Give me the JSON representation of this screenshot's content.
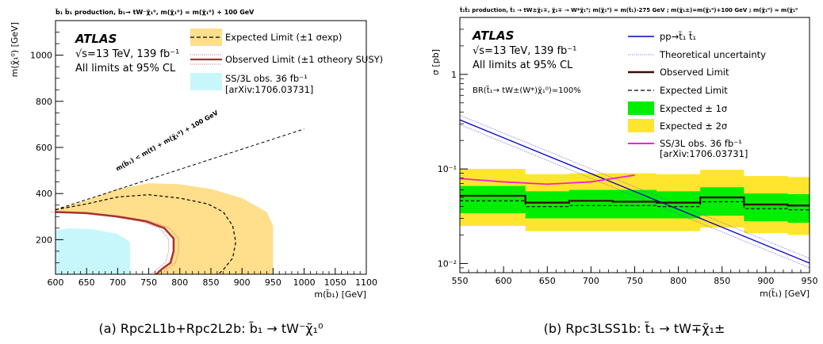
{
  "chart_data": [
    {
      "type": "line",
      "panel": "a",
      "title": "b̃₁ b̃₁ production, b̃₁→ tW⁻χ̃₁⁰, m(χ̃₁⁰) = m(χ̃₁⁰) + 100 GeV",
      "xlabel": "m(b̃₁) [GeV]",
      "ylabel": "m(χ̃₁⁰) [GeV]",
      "xlim": [
        600,
        1100
      ],
      "ylim": [
        50,
        1150
      ],
      "xticks": [
        "600",
        "650",
        "700",
        "750",
        "800",
        "850",
        "900",
        "950",
        "1000",
        "1050",
        "1100"
      ],
      "yticks": [
        "200",
        "400",
        "600",
        "800",
        "1000"
      ],
      "atlas_label": "ATLAS",
      "energy_label": "√s=13 TeV, 139 fb⁻¹",
      "cl_label": "All limits at 95% CL",
      "legend_position": "top-right",
      "legend": [
        {
          "label": "Expected Limit (±1 σexp)",
          "style": "dashed-yellow-band"
        },
        {
          "label": "Observed Limit (±1 σtheory SUSY)",
          "style": "solid-red-dotted"
        },
        {
          "label": "SS/3L obs. 36 fb⁻¹",
          "style": "cyan-fill"
        },
        {
          "label": "[arXiv:1706.03731]",
          "style": "text"
        }
      ],
      "diagonal_label": "m(b̃₁) < m(t) + m(χ̃₁⁰) + 100 GeV",
      "diagonal": {
        "x": [
          600,
          1000
        ],
        "y": [
          330,
          680
        ]
      },
      "expected": {
        "x": [
          600,
          650,
          700,
          750,
          800,
          845,
          870,
          885,
          890,
          885,
          870,
          862
        ],
        "y": [
          330,
          355,
          385,
          395,
          380,
          355,
          320,
          260,
          190,
          120,
          70,
          50
        ]
      },
      "expected_band": {
        "x": [
          600,
          650,
          700,
          750,
          800,
          850,
          900,
          940,
          950,
          950,
          600
        ],
        "y": [
          330,
          370,
          420,
          445,
          440,
          420,
          380,
          320,
          260,
          50,
          50
        ]
      },
      "observed": {
        "x": [
          600,
          650,
          700,
          745,
          775,
          790,
          790,
          785,
          770,
          762
        ],
        "y": [
          320,
          315,
          300,
          280,
          250,
          205,
          150,
          100,
          70,
          50
        ]
      },
      "ss3l": {
        "x": [
          600,
          620,
          660,
          700,
          720,
          720,
          600
        ],
        "y": [
          240,
          250,
          245,
          225,
          190,
          50,
          50
        ]
      }
    },
    {
      "type": "line",
      "panel": "b",
      "title": "t̃₁t̃₁ production, t̃₁ → tW±χ̃₁∓, χ̃₁∓ → W*χ̃₁⁰; m(χ̃₁⁰) = m(t̃₁)-275 GeV ; m(χ̃₁±)=m(χ̃₁⁰)+100 GeV ; m(χ̃₁⁰) ≈ m(χ̃₁⁰",
      "xlabel": "m(t̃₁) [GeV]",
      "ylabel": "σ [pb]",
      "xlim": [
        550,
        950
      ],
      "ylog": true,
      "ylim": [
        0.008,
        4
      ],
      "xticks": [
        "550",
        "600",
        "650",
        "700",
        "750",
        "800",
        "850",
        "900",
        "950"
      ],
      "yticks": [
        "10⁻²",
        "10⁻¹",
        "1"
      ],
      "atlas_label": "ATLAS",
      "energy_label": "√s=13 TeV, 139 fb⁻¹",
      "cl_label": "All limits at 95% CL",
      "br_label": "BR(t̃₁→ tW±(W*)χ̃₁⁰)=100%",
      "legend_position": "top-right",
      "legend": [
        {
          "label": "pp→t̃₁ t̃₁",
          "color": "#0000cc"
        },
        {
          "label": "Theoretical uncertainty",
          "color": "#6a6ae6"
        },
        {
          "label": "Observed Limit",
          "color": "#3a0e0e"
        },
        {
          "label": "Expected Limit",
          "color": "#000000"
        },
        {
          "label": "Expected ± 1σ",
          "color": "#00ee00"
        },
        {
          "label": "Expected ± 2σ",
          "color": "#ffe52e"
        },
        {
          "label": "SS/3L obs. 36 fb⁻¹",
          "color": "#ff1ed2"
        },
        {
          "label": "[arXiv:1706.03731]",
          "color": "#000000"
        }
      ],
      "x": [
        550,
        600,
        650,
        700,
        750,
        800,
        850,
        900,
        950
      ],
      "xsec": [
        0.34,
        0.176,
        0.095,
        0.053,
        0.03,
        0.0173,
        0.0103,
        0.0061,
        0.0038
      ],
      "xsec_line": {
        "x": [
          550,
          950
        ],
        "y": [
          0.33,
          0.0101
        ]
      },
      "observed": [
        0.052,
        0.052,
        0.044,
        0.046,
        0.045,
        0.044,
        0.05,
        0.042,
        0.041
      ],
      "expected": [
        0.046,
        0.046,
        0.04,
        0.041,
        0.041,
        0.04,
        0.045,
        0.038,
        0.037
      ],
      "band1_low": [
        0.034,
        0.034,
        0.03,
        0.03,
        0.03,
        0.03,
        0.032,
        0.028,
        0.027
      ],
      "band1_high": [
        0.066,
        0.066,
        0.058,
        0.06,
        0.06,
        0.058,
        0.064,
        0.055,
        0.054
      ],
      "band2_low": [
        0.025,
        0.025,
        0.022,
        0.022,
        0.022,
        0.022,
        0.024,
        0.021,
        0.02
      ],
      "band2_high": [
        0.1,
        0.1,
        0.088,
        0.09,
        0.09,
        0.088,
        0.098,
        0.084,
        0.082
      ],
      "ss3l": {
        "x": [
          550,
          600,
          650,
          700,
          750
        ],
        "y": [
          0.079,
          0.073,
          0.069,
          0.073,
          0.086
        ]
      }
    }
  ],
  "captions": {
    "a": "(a) Rpc2L1b+Rpc2L2b: b̃₁ → tW⁻χ̃₁⁰",
    "b": "(b) Rpc3LSS1b: t̃₁ → tW∓χ̃₁±"
  }
}
